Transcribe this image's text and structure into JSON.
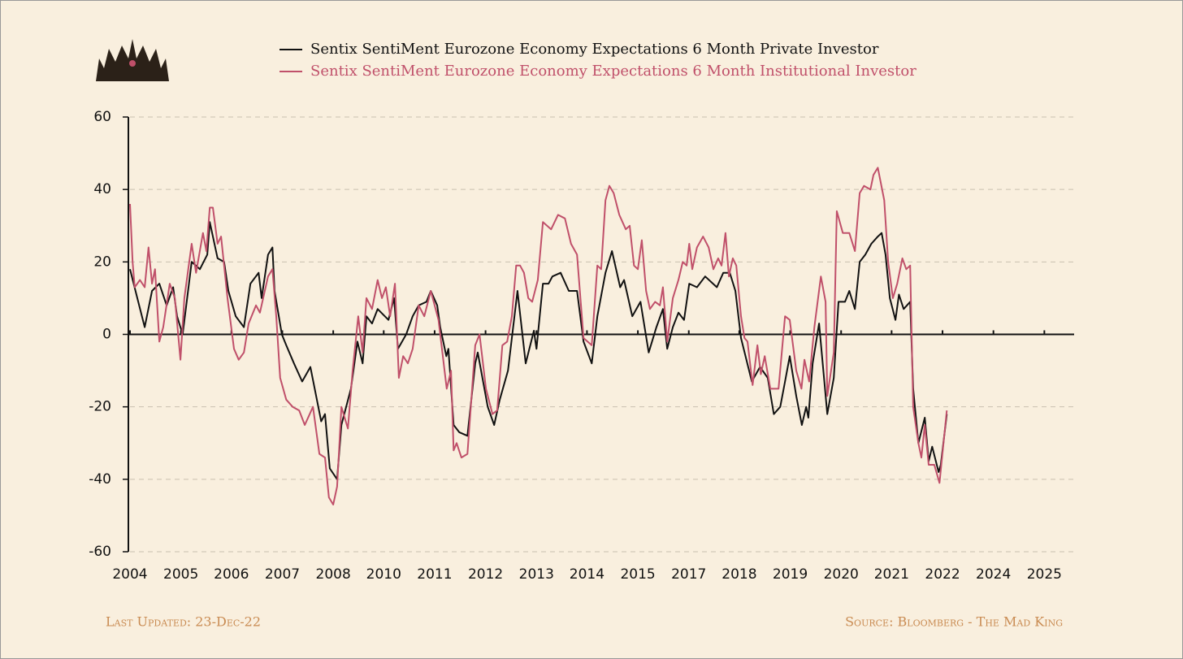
{
  "chart_data": {
    "type": "line",
    "series": [
      {
        "name": "Sentix SentiMent Eurozone Economy Expectations 6 Month Private Investor",
        "color": "#111111",
        "x": [
          2004.0,
          2004.17,
          2004.34,
          2004.51,
          2004.68,
          2004.85,
          2005.0,
          2005.09,
          2005.22,
          2005.43,
          2005.62,
          2005.79,
          2005.85,
          2006.03,
          2006.18,
          2006.28,
          2006.45,
          2006.64,
          2006.79,
          2006.98,
          2007.05,
          2007.2,
          2007.3,
          2007.35,
          2007.52,
          2007.62,
          2007.8,
          2007.99,
          2008.18,
          2008.43,
          2008.52,
          2008.63,
          2008.8,
          2008.9,
          2009.12,
          2009.27,
          2009.39,
          2009.48,
          2009.61,
          2009.74,
          2009.99,
          2010.12,
          2010.21,
          2010.4,
          2010.55,
          2010.69,
          2010.87,
          2010.97,
          2011.12,
          2011.19,
          2011.33,
          2011.38,
          2011.5,
          2011.63,
          2011.82,
          2012.0,
          2012.06,
          2012.29,
          2012.44,
          2012.57,
          2012.76,
          2012.98,
          2013.17,
          2013.36,
          2013.42,
          2013.57,
          2013.7,
          2013.79,
          2013.98,
          2014.17,
          2014.36,
          2014.51,
          2014.7,
          2014.83,
          2015.02,
          2015.17,
          2015.36,
          2015.45,
          2015.64,
          2015.83,
          2016.02,
          2016.2,
          2016.35,
          2016.45,
          2016.58,
          2016.71,
          2016.84,
          2016.96,
          2017.14,
          2017.33,
          2017.6,
          2017.75,
          2017.9,
          2018.03,
          2018.16,
          2018.41,
          2018.6,
          2018.78,
          2018.92,
          2019.07,
          2019.18,
          2019.29,
          2019.44,
          2019.57,
          2019.67,
          2019.72,
          2019.82,
          2019.97,
          2020.16,
          2020.31,
          2020.42,
          2020.57,
          2020.67,
          2020.8,
          2020.91,
          2021.04,
          2021.18,
          2021.33,
          2021.42,
          2021.51,
          2021.61,
          2021.74,
          2021.82,
          2021.93,
          2022.08,
          2022.15,
          2022.27,
          2022.42,
          2022.51,
          2022.59,
          2022.74,
          2022.79,
          2022.93
        ],
        "values": [
          18,
          10,
          2,
          12,
          14,
          8,
          13,
          5,
          0,
          20,
          18,
          22,
          31,
          21,
          20,
          12,
          5,
          2,
          14,
          17,
          10,
          22,
          24,
          12,
          0,
          -3,
          -8,
          -13,
          -9,
          -24,
          -22,
          -37,
          -40,
          -25,
          -15,
          -2,
          -8,
          5,
          3,
          7,
          4,
          10,
          -4,
          0,
          5,
          8,
          9,
          12,
          8,
          2,
          -6,
          -4,
          -25,
          -27,
          -28,
          -8,
          -5,
          -20,
          -25,
          -18,
          -10,
          12,
          -8,
          1,
          -4,
          14,
          14,
          16,
          17,
          12,
          12,
          -2,
          -8,
          5,
          17,
          23,
          13,
          15,
          5,
          9,
          -5,
          2,
          7,
          -4,
          2,
          6,
          4,
          14,
          13,
          16,
          13,
          17,
          17,
          12,
          -1,
          -13,
          -9,
          -12,
          -22,
          -20,
          -13,
          -6,
          -17,
          -25,
          -20,
          -23,
          -8,
          3,
          -22,
          -12,
          9,
          9,
          12,
          7,
          20,
          22,
          25,
          27,
          28,
          22,
          10,
          4,
          11,
          7,
          9,
          -15,
          -30,
          -23,
          -35,
          -31,
          -38,
          -36,
          -22
        ]
      },
      {
        "name": "Sentix SentiMent Eurozone Economy Expectations 6 Month Institutional Investor",
        "color": "#c0506a",
        "x": [
          2004.0,
          2004.06,
          2004.11,
          2004.23,
          2004.34,
          2004.43,
          2004.51,
          2004.58,
          2004.68,
          2004.77,
          2004.92,
          2005.04,
          2005.17,
          2005.26,
          2005.43,
          2005.53,
          2005.69,
          2005.77,
          2005.85,
          2005.92,
          2006.03,
          2006.11,
          2006.26,
          2006.41,
          2006.52,
          2006.64,
          2006.75,
          2006.92,
          2007.01,
          2007.2,
          2007.3,
          2007.39,
          2007.48,
          2007.62,
          2007.77,
          2007.92,
          2008.05,
          2008.24,
          2008.39,
          2008.52,
          2008.61,
          2008.71,
          2008.8,
          2008.9,
          2009.05,
          2009.16,
          2009.29,
          2009.39,
          2009.48,
          2009.61,
          2009.74,
          2009.84,
          2009.93,
          2010.03,
          2010.14,
          2010.23,
          2010.33,
          2010.44,
          2010.55,
          2010.69,
          2010.82,
          2010.97,
          2011.15,
          2011.34,
          2011.44,
          2011.5,
          2011.57,
          2011.68,
          2011.82,
          2012.0,
          2012.1,
          2012.25,
          2012.4,
          2012.51,
          2012.63,
          2012.74,
          2012.85,
          2012.95,
          2013.04,
          2013.13,
          2013.23,
          2013.32,
          2013.45,
          2013.57,
          2013.76,
          2013.92,
          2014.08,
          2014.22,
          2014.36,
          2014.51,
          2014.7,
          2014.83,
          2014.92,
          2015.02,
          2015.11,
          2015.21,
          2015.34,
          2015.49,
          2015.58,
          2015.68,
          2015.77,
          2015.86,
          2015.96,
          2016.05,
          2016.17,
          2016.28,
          2016.35,
          2016.45,
          2016.58,
          2016.71,
          2016.81,
          2016.9,
          2016.96,
          2017.03,
          2017.14,
          2017.28,
          2017.41,
          2017.52,
          2017.63,
          2017.71,
          2017.8,
          2017.88,
          2017.97,
          2018.05,
          2018.16,
          2018.24,
          2018.31,
          2018.43,
          2018.54,
          2018.62,
          2018.71,
          2018.84,
          2019.03,
          2019.18,
          2019.29,
          2019.44,
          2019.56,
          2019.63,
          2019.74,
          2019.86,
          2020.01,
          2020.12,
          2020.16,
          2020.31,
          2020.38,
          2020.52,
          2020.67,
          2020.8,
          2020.91,
          2021.01,
          2021.16,
          2021.23,
          2021.33,
          2021.48,
          2021.57,
          2021.68,
          2021.78,
          2021.9,
          2021.99,
          2022.08,
          2022.15,
          2022.27,
          2022.34,
          2022.42,
          2022.51,
          2022.64,
          2022.76,
          2022.93
        ],
        "values": [
          36,
          20,
          13,
          15,
          13,
          24,
          14,
          18,
          -2,
          2,
          14,
          10,
          -7,
          10,
          25,
          17,
          28,
          23,
          35,
          35,
          25,
          27,
          10,
          -4,
          -7,
          -5,
          3,
          8,
          6,
          16,
          18,
          5,
          -12,
          -18,
          -20,
          -21,
          -25,
          -20,
          -33,
          -34,
          -45,
          -47,
          -42,
          -20,
          -26,
          -10,
          5,
          -5,
          10,
          7,
          15,
          10,
          13,
          5,
          14,
          -12,
          -6,
          -8,
          -4,
          8,
          5,
          12,
          4,
          -15,
          -10,
          -32,
          -30,
          -34,
          -33,
          -3,
          0,
          -15,
          -22,
          -21,
          -3,
          -2,
          5,
          19,
          19,
          17,
          10,
          9,
          15,
          31,
          29,
          33,
          32,
          25,
          22,
          -1,
          -3,
          19,
          18,
          37,
          41,
          39,
          33,
          29,
          30,
          19,
          18,
          26,
          12,
          7,
          9,
          8,
          13,
          -2,
          10,
          15,
          20,
          19,
          25,
          18,
          24,
          27,
          24,
          18,
          21,
          19,
          28,
          16,
          21,
          19,
          5,
          -1,
          -2,
          -14,
          -3,
          -11,
          -6,
          -15,
          -15,
          5,
          4,
          -10,
          -15,
          -7,
          -13,
          2,
          16,
          9,
          -17,
          -5,
          34,
          28,
          28,
          23,
          39,
          41,
          40,
          44,
          46,
          37,
          20,
          10,
          14,
          21,
          18,
          19,
          -20,
          -30,
          -34,
          -25,
          -36,
          -36,
          -41,
          -21
        ]
      }
    ],
    "xlim": [
      2004,
      2025.88
    ],
    "xticks": [
      {
        "value": 2004.0,
        "label": "2004"
      },
      {
        "value": 2005.18,
        "label": "2005"
      },
      {
        "value": 2006.35,
        "label": "2006"
      },
      {
        "value": 2007.53,
        "label": "2007"
      },
      {
        "value": 2008.71,
        "label": "2008"
      },
      {
        "value": 2009.88,
        "label": "2010"
      },
      {
        "value": 2011.06,
        "label": "2011"
      },
      {
        "value": 2012.24,
        "label": "2012"
      },
      {
        "value": 2013.42,
        "label": "2013"
      },
      {
        "value": 2014.59,
        "label": "2014"
      },
      {
        "value": 2015.77,
        "label": "2015"
      },
      {
        "value": 2016.95,
        "label": "2017"
      },
      {
        "value": 2018.12,
        "label": "2018"
      },
      {
        "value": 2019.3,
        "label": "2019"
      },
      {
        "value": 2020.48,
        "label": "2020"
      },
      {
        "value": 2021.65,
        "label": "2021"
      },
      {
        "value": 2022.83,
        "label": "2022"
      },
      {
        "value": 2024.01,
        "label": "2024"
      },
      {
        "value": 2025.19,
        "label": "2025"
      }
    ],
    "ylim": [
      -60,
      60
    ],
    "yticks": [
      -60,
      -40,
      -20,
      0,
      20,
      40,
      60
    ],
    "grid": true,
    "footer": {
      "left": "Last Updated: 23-Dec-22",
      "right": "Source: Bloomberg - The Mad King"
    }
  }
}
